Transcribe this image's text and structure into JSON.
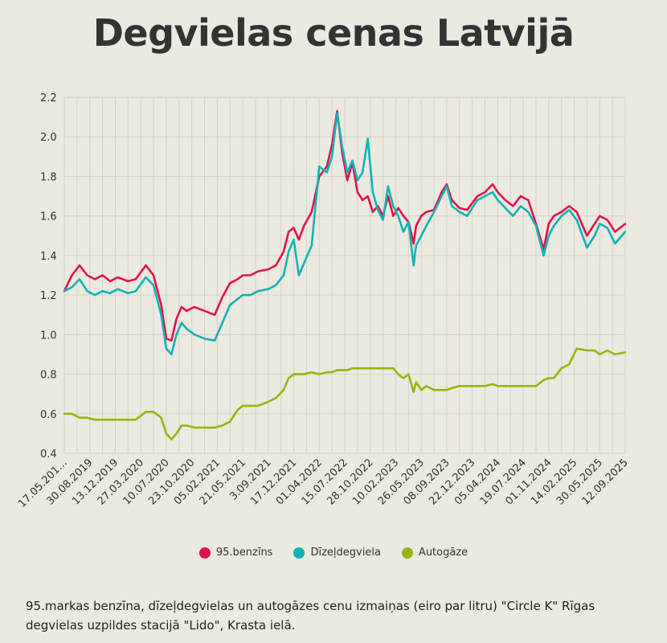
{
  "title": "Degvielas cenas Latvijā",
  "caption": "95.markas benzīna, dīzeļdegvielas un autogāzes cenu izmaiņas (eiro par litru) \"Circle K\" Rīgas degvielas uzpildes stacijā \"Lido\", Krasta ielā.",
  "chart_data": {
    "type": "line",
    "title": "Degvielas cenas Latvijā",
    "xlabel": "",
    "ylabel": "",
    "ylim": [
      0.4,
      2.2
    ],
    "yticks": [
      "0.4",
      "0.6",
      "0.8",
      "1.0",
      "1.2",
      "1.4",
      "1.6",
      "1.8",
      "2.0",
      "2.2"
    ],
    "xticks": [
      "17.05.201…",
      "30.08.2019",
      "13.12.2019",
      "27.03.2020",
      "10.07.2020",
      "23.10.2020",
      "05.02.2021",
      "21.05.2021",
      "3.09.2021",
      "17.12.2021",
      "01.04.2022",
      "15.07.2022",
      "28.10.2022",
      "10.02.2023",
      "26.05.2023",
      "08.09.2023",
      "22.12.2023",
      "05.04.2024",
      "19.07.2024",
      "01.11.2024",
      "14.02.2025",
      "30.05.2025",
      "12.09.2025"
    ],
    "x_range": [
      0,
      22
    ],
    "legend_position": "bottom",
    "series": [
      {
        "name": "95.benzīns",
        "color": "#e0134b",
        "x": [
          0,
          0.3,
          0.6,
          0.9,
          1.2,
          1.5,
          1.8,
          2.1,
          2.5,
          2.8,
          3.2,
          3.5,
          3.8,
          4.0,
          4.2,
          4.4,
          4.6,
          4.8,
          5.1,
          5.5,
          5.9,
          6.2,
          6.5,
          6.8,
          7.0,
          7.3,
          7.6,
          8.0,
          8.3,
          8.6,
          8.8,
          9.0,
          9.2,
          9.4,
          9.7,
          10.0,
          10.3,
          10.5,
          10.7,
          10.9,
          11.1,
          11.3,
          11.5,
          11.7,
          11.9,
          12.1,
          12.3,
          12.5,
          12.7,
          12.9,
          13.1,
          13.3,
          13.5,
          13.7,
          13.8,
          14.0,
          14.2,
          14.5,
          14.8,
          15.0,
          15.2,
          15.5,
          15.8,
          16.2,
          16.5,
          16.8,
          17.0,
          17.3,
          17.6,
          17.9,
          18.2,
          18.5,
          18.8,
          19.0,
          19.2,
          19.5,
          19.8,
          20.1,
          20.5,
          20.8,
          21.0,
          21.3,
          21.6,
          22.0
        ],
        "values": [
          1.22,
          1.3,
          1.35,
          1.3,
          1.28,
          1.3,
          1.27,
          1.29,
          1.27,
          1.28,
          1.35,
          1.3,
          1.15,
          0.98,
          0.97,
          1.08,
          1.14,
          1.12,
          1.14,
          1.12,
          1.1,
          1.19,
          1.26,
          1.28,
          1.3,
          1.3,
          1.32,
          1.33,
          1.35,
          1.42,
          1.52,
          1.54,
          1.48,
          1.55,
          1.62,
          1.8,
          1.85,
          1.96,
          2.13,
          1.92,
          1.78,
          1.87,
          1.72,
          1.68,
          1.7,
          1.62,
          1.65,
          1.6,
          1.7,
          1.6,
          1.64,
          1.6,
          1.57,
          1.46,
          1.55,
          1.6,
          1.62,
          1.63,
          1.72,
          1.76,
          1.68,
          1.64,
          1.63,
          1.7,
          1.72,
          1.76,
          1.72,
          1.68,
          1.65,
          1.7,
          1.68,
          1.56,
          1.43,
          1.56,
          1.6,
          1.62,
          1.65,
          1.62,
          1.5,
          1.56,
          1.6,
          1.58,
          1.52,
          1.56
        ]
      },
      {
        "name": "Dīzeļdegviela",
        "color": "#11b3b8",
        "x": [
          0,
          0.3,
          0.6,
          0.9,
          1.2,
          1.5,
          1.8,
          2.1,
          2.5,
          2.8,
          3.2,
          3.5,
          3.8,
          4.0,
          4.2,
          4.4,
          4.6,
          4.8,
          5.1,
          5.5,
          5.9,
          6.2,
          6.5,
          6.8,
          7.0,
          7.3,
          7.6,
          8.0,
          8.3,
          8.6,
          8.8,
          9.0,
          9.2,
          9.4,
          9.7,
          10.0,
          10.3,
          10.5,
          10.7,
          10.9,
          11.1,
          11.3,
          11.5,
          11.7,
          11.9,
          12.1,
          12.3,
          12.5,
          12.7,
          12.9,
          13.1,
          13.3,
          13.5,
          13.7,
          13.8,
          14.0,
          14.2,
          14.5,
          14.8,
          15.0,
          15.2,
          15.5,
          15.8,
          16.2,
          16.5,
          16.8,
          17.0,
          17.3,
          17.6,
          17.9,
          18.2,
          18.5,
          18.8,
          19.0,
          19.2,
          19.5,
          19.8,
          20.1,
          20.5,
          20.8,
          21.0,
          21.3,
          21.6,
          22.0
        ],
        "values": [
          1.22,
          1.24,
          1.28,
          1.22,
          1.2,
          1.22,
          1.21,
          1.23,
          1.21,
          1.22,
          1.29,
          1.25,
          1.1,
          0.93,
          0.9,
          1.0,
          1.06,
          1.03,
          1.0,
          0.98,
          0.97,
          1.06,
          1.15,
          1.18,
          1.2,
          1.2,
          1.22,
          1.23,
          1.25,
          1.3,
          1.42,
          1.48,
          1.3,
          1.36,
          1.45,
          1.85,
          1.82,
          1.9,
          2.12,
          1.95,
          1.82,
          1.88,
          1.78,
          1.82,
          1.99,
          1.72,
          1.63,
          1.58,
          1.75,
          1.65,
          1.6,
          1.52,
          1.57,
          1.35,
          1.45,
          1.5,
          1.55,
          1.62,
          1.7,
          1.75,
          1.65,
          1.62,
          1.6,
          1.68,
          1.7,
          1.72,
          1.68,
          1.64,
          1.6,
          1.65,
          1.62,
          1.55,
          1.4,
          1.5,
          1.55,
          1.6,
          1.63,
          1.58,
          1.44,
          1.5,
          1.56,
          1.54,
          1.46,
          1.52
        ]
      },
      {
        "name": "Autogāze",
        "color": "#9bb30f",
        "x": [
          0,
          0.3,
          0.6,
          0.9,
          1.2,
          1.5,
          1.8,
          2.1,
          2.5,
          2.8,
          3.2,
          3.5,
          3.8,
          4.0,
          4.2,
          4.4,
          4.6,
          4.8,
          5.1,
          5.5,
          5.9,
          6.2,
          6.5,
          6.8,
          7.0,
          7.3,
          7.6,
          8.0,
          8.3,
          8.6,
          8.8,
          9.0,
          9.2,
          9.4,
          9.7,
          10.0,
          10.3,
          10.5,
          10.7,
          10.9,
          11.1,
          11.3,
          11.5,
          11.7,
          11.9,
          12.1,
          12.3,
          12.5,
          12.7,
          12.9,
          13.1,
          13.3,
          13.5,
          13.7,
          13.8,
          14.0,
          14.2,
          14.5,
          14.8,
          15.0,
          15.2,
          15.5,
          15.8,
          16.2,
          16.5,
          16.8,
          17.0,
          17.3,
          17.6,
          17.9,
          18.2,
          18.5,
          18.8,
          19.0,
          19.2,
          19.5,
          19.8,
          20.1,
          20.5,
          20.8,
          21.0,
          21.3,
          21.6,
          22.0
        ],
        "values": [
          0.6,
          0.6,
          0.58,
          0.58,
          0.57,
          0.57,
          0.57,
          0.57,
          0.57,
          0.57,
          0.61,
          0.61,
          0.58,
          0.5,
          0.47,
          0.5,
          0.54,
          0.54,
          0.53,
          0.53,
          0.53,
          0.54,
          0.56,
          0.62,
          0.64,
          0.64,
          0.64,
          0.66,
          0.68,
          0.72,
          0.78,
          0.8,
          0.8,
          0.8,
          0.81,
          0.8,
          0.81,
          0.81,
          0.82,
          0.82,
          0.82,
          0.83,
          0.83,
          0.83,
          0.83,
          0.83,
          0.83,
          0.83,
          0.83,
          0.83,
          0.8,
          0.78,
          0.8,
          0.71,
          0.76,
          0.72,
          0.74,
          0.72,
          0.72,
          0.72,
          0.73,
          0.74,
          0.74,
          0.74,
          0.74,
          0.75,
          0.74,
          0.74,
          0.74,
          0.74,
          0.74,
          0.74,
          0.77,
          0.78,
          0.78,
          0.83,
          0.85,
          0.93,
          0.92,
          0.92,
          0.9,
          0.92,
          0.9,
          0.91
        ]
      }
    ]
  }
}
